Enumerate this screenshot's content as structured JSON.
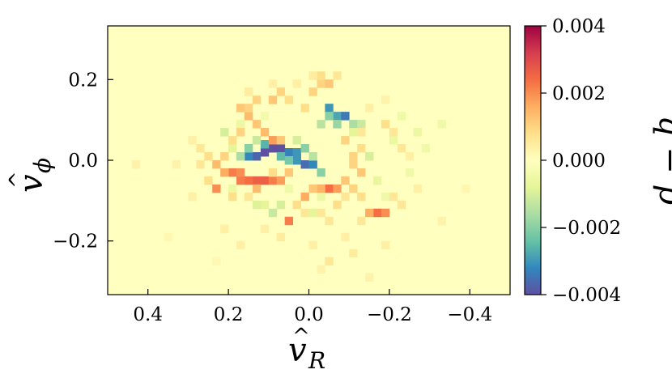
{
  "chart_data": {
    "type": "heatmap",
    "title": "",
    "xlabel_symbol": "v",
    "xlabel_subscript": "R",
    "ylabel_symbol": "v",
    "ylabel_subscript": "ϕ",
    "colorbar_label": "q − p",
    "x_axis_inverted": true,
    "xlim": [
      0.5,
      -0.5
    ],
    "ylim": [
      -0.333,
      0.333
    ],
    "x_ticks": [
      {
        "value": 0.4,
        "label": "0.4"
      },
      {
        "value": 0.2,
        "label": "0.2"
      },
      {
        "value": 0.0,
        "label": "0.0"
      },
      {
        "value": -0.2,
        "label": "−0.2"
      },
      {
        "value": -0.4,
        "label": "−0.4"
      }
    ],
    "y_ticks": [
      {
        "value": 0.2,
        "label": "0.2"
      },
      {
        "value": 0.0,
        "label": "0.0"
      },
      {
        "value": -0.2,
        "label": "−0.2"
      }
    ],
    "colorbar_range": [
      -0.004,
      0.004
    ],
    "colorbar_ticks": [
      {
        "value": 0.004,
        "label": "0.004"
      },
      {
        "value": 0.002,
        "label": "0.002"
      },
      {
        "value": 0.0,
        "label": "0.000"
      },
      {
        "value": -0.002,
        "label": "−0.002"
      },
      {
        "value": -0.004,
        "label": "−0.004"
      }
    ],
    "colormap": "Spectral",
    "grid_bins": [
      50,
      33
    ],
    "background_value": 0.0,
    "cells": [
      {
        "x": 0.11,
        "y": 0.02,
        "v": -0.004
      },
      {
        "x": 0.09,
        "y": 0.03,
        "v": -0.004
      },
      {
        "x": 0.07,
        "y": 0.03,
        "v": -0.004
      },
      {
        "x": 0.13,
        "y": 0.01,
        "v": -0.0037
      },
      {
        "x": 0.15,
        "y": 0.01,
        "v": -0.0032
      },
      {
        "x": 0.05,
        "y": 0.02,
        "v": -0.0033
      },
      {
        "x": 0.03,
        "y": 0.02,
        "v": -0.003
      },
      {
        "x": 0.03,
        "y": 0.0,
        "v": -0.003
      },
      {
        "x": 0.01,
        "y": -0.01,
        "v": -0.0036
      },
      {
        "x": -0.01,
        "y": -0.01,
        "v": -0.0032
      },
      {
        "x": -0.03,
        "y": -0.03,
        "v": -0.002
      },
      {
        "x": 0.05,
        "y": 0.0,
        "v": -0.0022
      },
      {
        "x": 0.07,
        "y": 0.01,
        "v": -0.0025
      },
      {
        "x": 0.11,
        "y": 0.04,
        "v": -0.0026
      },
      {
        "x": 0.15,
        "y": 0.03,
        "v": -0.002
      },
      {
        "x": 0.17,
        "y": 0.01,
        "v": -0.0016
      },
      {
        "x": -0.05,
        "y": 0.13,
        "v": -0.003
      },
      {
        "x": -0.07,
        "y": 0.11,
        "v": -0.0028
      },
      {
        "x": -0.09,
        "y": 0.11,
        "v": -0.0034
      },
      {
        "x": -0.05,
        "y": 0.11,
        "v": -0.002
      },
      {
        "x": -0.07,
        "y": 0.09,
        "v": -0.0018
      },
      {
        "x": -0.03,
        "y": 0.09,
        "v": -0.0014
      },
      {
        "x": -0.11,
        "y": 0.09,
        "v": -0.0016
      },
      {
        "x": -0.13,
        "y": 0.09,
        "v": -0.0012
      },
      {
        "x": -0.11,
        "y": 0.07,
        "v": -0.0008
      },
      {
        "x": 0.01,
        "y": 0.03,
        "v": -0.002
      },
      {
        "x": -0.01,
        "y": 0.01,
        "v": -0.0014
      },
      {
        "x": 0.03,
        "y": 0.05,
        "v": -0.001
      },
      {
        "x": -0.15,
        "y": 0.01,
        "v": -0.001
      },
      {
        "x": 0.13,
        "y": 0.05,
        "v": -0.0012
      },
      {
        "x": 0.19,
        "y": 0.03,
        "v": -0.0008
      },
      {
        "x": 0.21,
        "y": 0.07,
        "v": -0.001
      },
      {
        "x": 0.09,
        "y": -0.13,
        "v": -0.0012
      },
      {
        "x": 0.07,
        "y": -0.11,
        "v": -0.001
      },
      {
        "x": 0.11,
        "y": -0.11,
        "v": -0.0008
      },
      {
        "x": 0.17,
        "y": 0.09,
        "v": -0.0006
      },
      {
        "x": 0.13,
        "y": -0.11,
        "v": -0.0009
      },
      {
        "x": -0.01,
        "y": -0.13,
        "v": -0.0008
      },
      {
        "x": -0.03,
        "y": -0.09,
        "v": -0.0006
      },
      {
        "x": 0.19,
        "y": -0.07,
        "v": -0.0006
      },
      {
        "x": -0.17,
        "y": -0.05,
        "v": -0.0007
      },
      {
        "x": -0.27,
        "y": 0.07,
        "v": -0.0006
      },
      {
        "x": -0.29,
        "y": 0.03,
        "v": -0.0005
      },
      {
        "x": -0.33,
        "y": 0.09,
        "v": -0.0005
      },
      {
        "x": -0.23,
        "y": 0.11,
        "v": -0.0005
      },
      {
        "x": -0.25,
        "y": -0.03,
        "v": -0.0005
      },
      {
        "x": -0.19,
        "y": -0.09,
        "v": -0.0005
      },
      {
        "x": 0.05,
        "y": -0.07,
        "v": -0.0005
      },
      {
        "x": -0.21,
        "y": 0.05,
        "v": -0.0006
      },
      {
        "x": 0.11,
        "y": 0.11,
        "v": -0.0004
      },
      {
        "x": 0.11,
        "y": -0.05,
        "v": 0.0026
      },
      {
        "x": 0.13,
        "y": -0.05,
        "v": 0.0026
      },
      {
        "x": 0.15,
        "y": -0.05,
        "v": 0.0024
      },
      {
        "x": 0.17,
        "y": -0.05,
        "v": 0.0022
      },
      {
        "x": 0.19,
        "y": -0.03,
        "v": 0.0022
      },
      {
        "x": 0.17,
        "y": -0.03,
        "v": 0.002
      },
      {
        "x": 0.21,
        "y": -0.03,
        "v": 0.0016
      },
      {
        "x": 0.09,
        "y": -0.05,
        "v": 0.0022
      },
      {
        "x": 0.07,
        "y": -0.05,
        "v": 0.0018
      },
      {
        "x": 0.23,
        "y": -0.01,
        "v": 0.0014
      },
      {
        "x": 0.23,
        "y": -0.07,
        "v": 0.002
      },
      {
        "x": 0.13,
        "y": -0.07,
        "v": 0.0014
      },
      {
        "x": 0.05,
        "y": -0.03,
        "v": 0.0012
      },
      {
        "x": -0.05,
        "y": -0.07,
        "v": 0.0024
      },
      {
        "x": -0.07,
        "y": -0.07,
        "v": 0.0018
      },
      {
        "x": -0.03,
        "y": -0.07,
        "v": 0.0015
      },
      {
        "x": -0.09,
        "y": -0.05,
        "v": 0.0012
      },
      {
        "x": 0.01,
        "y": -0.09,
        "v": 0.0016
      },
      {
        "x": -0.01,
        "y": -0.07,
        "v": 0.0012
      },
      {
        "x": 0.05,
        "y": -0.15,
        "v": 0.0022
      },
      {
        "x": -0.17,
        "y": -0.13,
        "v": 0.0024
      },
      {
        "x": -0.19,
        "y": -0.13,
        "v": 0.002
      },
      {
        "x": -0.15,
        "y": -0.13,
        "v": 0.0016
      },
      {
        "x": 0.09,
        "y": 0.05,
        "v": 0.0018
      },
      {
        "x": 0.07,
        "y": 0.05,
        "v": 0.0012
      },
      {
        "x": 0.11,
        "y": 0.07,
        "v": 0.0014
      },
      {
        "x": 0.13,
        "y": 0.09,
        "v": 0.0012
      },
      {
        "x": 0.15,
        "y": 0.11,
        "v": 0.0014
      },
      {
        "x": 0.17,
        "y": 0.13,
        "v": 0.0012
      },
      {
        "x": 0.15,
        "y": 0.13,
        "v": 0.001
      },
      {
        "x": 0.13,
        "y": 0.15,
        "v": 0.001
      },
      {
        "x": 0.09,
        "y": 0.15,
        "v": 0.0012
      },
      {
        "x": 0.07,
        "y": 0.17,
        "v": 0.001
      },
      {
        "x": 0.05,
        "y": 0.15,
        "v": 0.0008
      },
      {
        "x": -0.01,
        "y": 0.17,
        "v": 0.001
      },
      {
        "x": -0.03,
        "y": 0.19,
        "v": 0.001
      },
      {
        "x": -0.05,
        "y": 0.19,
        "v": 0.0012
      },
      {
        "x": 0.01,
        "y": 0.13,
        "v": 0.0008
      },
      {
        "x": 0.17,
        "y": 0.07,
        "v": 0.001
      },
      {
        "x": 0.19,
        "y": 0.05,
        "v": 0.0008
      },
      {
        "x": 0.21,
        "y": 0.01,
        "v": 0.001
      },
      {
        "x": 0.25,
        "y": 0.01,
        "v": 0.0008
      },
      {
        "x": 0.27,
        "y": 0.03,
        "v": 0.0006
      },
      {
        "x": -0.11,
        "y": 0.01,
        "v": 0.001
      },
      {
        "x": -0.13,
        "y": 0.03,
        "v": 0.0008
      },
      {
        "x": -0.09,
        "y": 0.05,
        "v": 0.001
      },
      {
        "x": -0.13,
        "y": 0.07,
        "v": 0.0006
      },
      {
        "x": -0.19,
        "y": 0.09,
        "v": 0.0008
      },
      {
        "x": -0.21,
        "y": 0.07,
        "v": 0.0006
      },
      {
        "x": -0.23,
        "y": 0.03,
        "v": 0.0006
      },
      {
        "x": -0.11,
        "y": -0.01,
        "v": 0.001
      },
      {
        "x": -0.13,
        "y": -0.03,
        "v": 0.0012
      },
      {
        "x": -0.11,
        "y": -0.07,
        "v": 0.001
      },
      {
        "x": -0.13,
        "y": -0.09,
        "v": 0.0008
      },
      {
        "x": -0.07,
        "y": -0.11,
        "v": 0.0008
      },
      {
        "x": -0.09,
        "y": -0.09,
        "v": 0.0006
      },
      {
        "x": 0.03,
        "y": -0.11,
        "v": 0.0008
      },
      {
        "x": 0.01,
        "y": -0.13,
        "v": 0.0006
      },
      {
        "x": 0.15,
        "y": -0.09,
        "v": 0.0006
      },
      {
        "x": 0.19,
        "y": -0.09,
        "v": 0.0008
      },
      {
        "x": 0.25,
        "y": -0.05,
        "v": 0.0008
      },
      {
        "x": 0.27,
        "y": -0.01,
        "v": 0.0006
      },
      {
        "x": 0.09,
        "y": -0.03,
        "v": 0.0008
      },
      {
        "x": -0.21,
        "y": -0.09,
        "v": 0.0006
      },
      {
        "x": -0.23,
        "y": -0.11,
        "v": 0.0006
      },
      {
        "x": -0.13,
        "y": -0.15,
        "v": 0.0006
      },
      {
        "x": -0.03,
        "y": -0.13,
        "v": 0.0006
      },
      {
        "x": -0.05,
        "y": -0.15,
        "v": 0.0006
      },
      {
        "x": 0.11,
        "y": -0.17,
        "v": 0.0004
      },
      {
        "x": 0.07,
        "y": -0.19,
        "v": 0.0005
      },
      {
        "x": -0.09,
        "y": -0.19,
        "v": 0.0004
      },
      {
        "x": -0.11,
        "y": -0.23,
        "v": 0.0005
      },
      {
        "x": -0.05,
        "y": -0.25,
        "v": 0.0006
      },
      {
        "x": -0.01,
        "y": -0.21,
        "v": 0.0004
      },
      {
        "x": 0.17,
        "y": -0.21,
        "v": 0.0004
      },
      {
        "x": 0.21,
        "y": -0.17,
        "v": 0.0004
      },
      {
        "x": -0.19,
        "y": -0.21,
        "v": 0.0004
      },
      {
        "x": -0.03,
        "y": 0.21,
        "v": 0.0008
      },
      {
        "x": -0.07,
        "y": 0.21,
        "v": 0.0006
      },
      {
        "x": -0.01,
        "y": 0.21,
        "v": 0.0005
      },
      {
        "x": 0.15,
        "y": 0.17,
        "v": 0.0005
      },
      {
        "x": 0.09,
        "y": 0.19,
        "v": 0.0004
      },
      {
        "x": 0.03,
        "y": 0.19,
        "v": 0.0004
      },
      {
        "x": 0.29,
        "y": 0.05,
        "v": 0.0004
      },
      {
        "x": 0.33,
        "y": -0.01,
        "v": 0.0003
      },
      {
        "x": 0.29,
        "y": -0.09,
        "v": 0.0004
      },
      {
        "x": -0.27,
        "y": -0.07,
        "v": 0.0004
      },
      {
        "x": -0.25,
        "y": 0.01,
        "v": 0.0004
      },
      {
        "x": -0.15,
        "y": 0.13,
        "v": 0.0004
      },
      {
        "x": -0.19,
        "y": 0.15,
        "v": 0.0003
      },
      {
        "x": 0.43,
        "y": -0.01,
        "v": 0.0003
      },
      {
        "x": -0.33,
        "y": -0.15,
        "v": 0.0003
      },
      {
        "x": -0.15,
        "y": -0.29,
        "v": 0.0003
      },
      {
        "x": 0.23,
        "y": -0.25,
        "v": 0.0002
      },
      {
        "x": -0.03,
        "y": -0.27,
        "v": 0.0003
      },
      {
        "x": 0.35,
        "y": -0.19,
        "v": 0.0002
      },
      {
        "x": -0.39,
        "y": -0.07,
        "v": 0.0002
      }
    ]
  }
}
